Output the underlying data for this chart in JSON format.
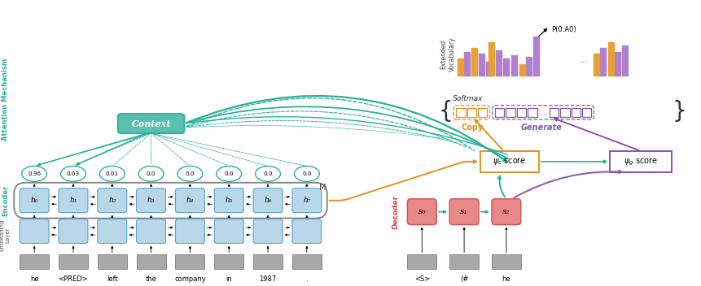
{
  "fig_width": 8.62,
  "fig_height": 3.52,
  "bg_color": "#ffffff",
  "encoder_words": [
    "he",
    "<PRED>",
    "left",
    "the",
    "company",
    "in",
    "1987",
    "."
  ],
  "attention_weights": [
    "0.96",
    "0.03",
    "0.01",
    "0.0",
    "0.0",
    "0.0",
    "0.0",
    "0.0"
  ],
  "decoder_words": [
    "<S>",
    "(#",
    "he"
  ],
  "decoder_labels": [
    "s₀",
    "s₁",
    "s₂"
  ],
  "encoder_labels": [
    "h₀",
    "h₁",
    "h₂",
    "h₃",
    "h₄",
    "h₅",
    "h₆",
    "h₇"
  ],
  "box_blue": "#b8d8ea",
  "box_blue_border": "#5b9fc4",
  "box_gray_fill": "#a8a8a8",
  "box_gray_border": "#888888",
  "teal_color": "#29b099",
  "teal_light": "#5ec9b8",
  "orange_color": "#e09020",
  "purple_color": "#8855aa",
  "salmon_color": "#e88888",
  "salmon_border": "#cc5555",
  "context_fill": "#5bbfb0",
  "context_border": "#2ab5a0",
  "decoder_label_color": "#dd4444",
  "bar_orange": "#e8a030",
  "bar_purple": "#b07fd0",
  "attention_color": "#29b099"
}
